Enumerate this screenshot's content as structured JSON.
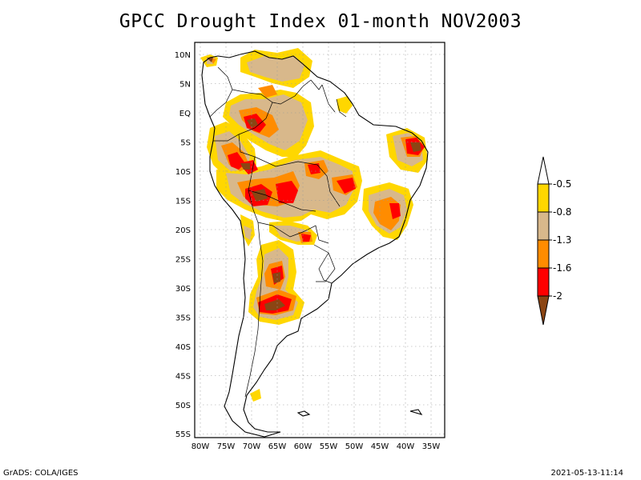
{
  "title": "GPCC Drought Index 01-month NOV2003",
  "map": {
    "region": "South America",
    "lon_range": [
      -81,
      -33
    ],
    "lat_range": [
      -56,
      12
    ],
    "lat_labels": [
      "10N",
      "5N",
      "EQ",
      "5S",
      "10S",
      "15S",
      "20S",
      "25S",
      "30S",
      "35S",
      "40S",
      "45S",
      "50S",
      "55S"
    ],
    "lon_labels": [
      "80W",
      "75W",
      "70W",
      "65W",
      "60W",
      "55W",
      "50W",
      "45W",
      "40W",
      "35W"
    ],
    "gridlines": "dotted"
  },
  "colorbar": {
    "labels": [
      "-0.5",
      "-0.8",
      "-1.3",
      "-1.6",
      "-2"
    ],
    "colors": {
      "above": "#ffffff",
      "c1": "#ffd700",
      "c2": "#d8b88b",
      "c3": "#ff8c00",
      "c4": "#ff0000",
      "below": "#8b4513"
    }
  },
  "footer": {
    "left": "GrADS: COLA/IGES",
    "right": "2021-05-13-11:14"
  }
}
